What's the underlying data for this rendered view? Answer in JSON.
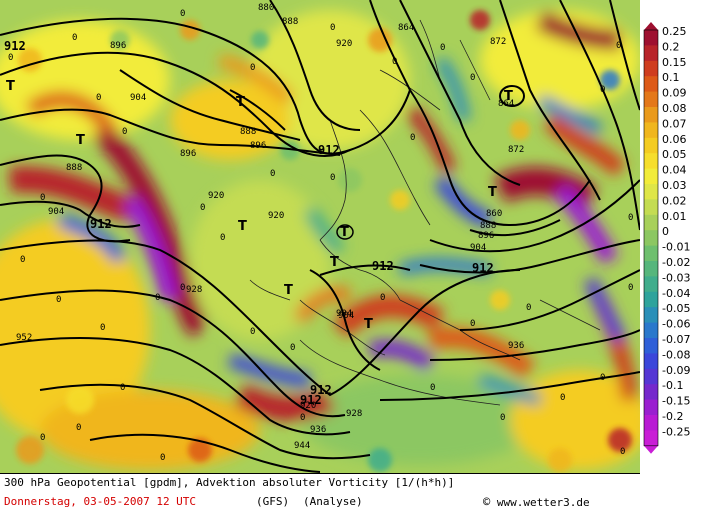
{
  "title": "300 hPa Geopotential [gpdm], Advektion absoluter Vorticity [1/(h*h)]",
  "date": "Donnerstag, 03-05-2007  12 UTC",
  "model": "(GFS)",
  "run": "(Analyse)",
  "copyright_symbol": "©",
  "copyright": "www.wetter3.de",
  "legend": {
    "values": [
      "0.25",
      "0.2",
      "0.15",
      "0.1",
      "0.09",
      "0.08",
      "0.07",
      "0.06",
      "0.05",
      "0.04",
      "0.03",
      "0.02",
      "0.01",
      "0",
      "-0.01",
      "-0.02",
      "-0.03",
      "-0.04",
      "-0.05",
      "-0.06",
      "-0.07",
      "-0.08",
      "-0.09",
      "-0.1",
      "-0.15",
      "-0.2",
      "-0.25"
    ],
    "colors": [
      "#9e1030",
      "#b8242a",
      "#cf3d1f",
      "#dd5a18",
      "#e4781a",
      "#ea9a1c",
      "#f0b61e",
      "#f4cc22",
      "#f6de2c",
      "#f2ec3a",
      "#dfe648",
      "#c4dc52",
      "#a8d05a",
      "#8cc762",
      "#6ebf6e",
      "#56b67c",
      "#40ad8c",
      "#2ea39c",
      "#2a8fb8",
      "#2a78cc",
      "#2f5fd8",
      "#3b46da",
      "#5536d4",
      "#7528cc",
      "#9a1fd0",
      "#b81ad4",
      "#c91ed6"
    ]
  },
  "contour_labels": [
    "888",
    "896",
    "904",
    "912",
    "920",
    "928",
    "936",
    "944",
    "952",
    "864",
    "872",
    "880"
  ],
  "map_labels": [
    {
      "text": "880"
    },
    {
      "text": "888"
    },
    {
      "text": "896"
    },
    {
      "text": "904"
    },
    {
      "text": "912"
    },
    {
      "text": "920"
    },
    {
      "text": "864"
    },
    {
      "text": "872"
    },
    {
      "text": "888"
    },
    {
      "text": "896"
    },
    {
      "text": "896"
    },
    {
      "text": "912"
    },
    {
      "text": "904"
    },
    {
      "text": "912"
    },
    {
      "text": "920"
    },
    {
      "text": "920"
    },
    {
      "text": "912"
    },
    {
      "text": "928"
    },
    {
      "text": "912"
    },
    {
      "text": "904"
    },
    {
      "text": "864"
    },
    {
      "text": "872"
    },
    {
      "text": "860"
    },
    {
      "text": "888"
    },
    {
      "text": "896"
    },
    {
      "text": "904"
    },
    {
      "text": "912"
    },
    {
      "text": "952"
    },
    {
      "text": "912"
    },
    {
      "text": "920"
    },
    {
      "text": "928"
    },
    {
      "text": "936"
    },
    {
      "text": "944"
    },
    {
      "text": "936"
    },
    {
      "text": "904"
    },
    {
      "text": "888"
    }
  ],
  "pressure_centers": [
    "T",
    "T",
    "T",
    "T",
    "T",
    "T",
    "T",
    "T",
    "T",
    "T"
  ]
}
